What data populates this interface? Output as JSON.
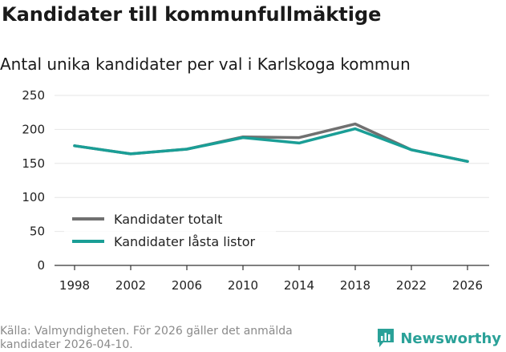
{
  "header": {
    "title": "Kandidater till kommunfullmäktige",
    "subtitle": "Antal unika kandidater per val i Karlskoga kommun"
  },
  "chart_data": {
    "type": "line",
    "title": "Kandidater till kommunfullmäktige",
    "subtitle": "Antal unika kandidater per val i Karlskoga kommun",
    "categories": [
      "1998",
      "2002",
      "2006",
      "2010",
      "2014",
      "2018",
      "2022",
      "2026"
    ],
    "series": [
      {
        "name": "Kandidater totalt",
        "color": "#707070",
        "values": [
          176,
          164,
          171,
          189,
          188,
          208,
          170,
          153
        ]
      },
      {
        "name": "Kandidater låsta listor",
        "color": "#1a9e96",
        "values": [
          176,
          164,
          171,
          188,
          180,
          201,
          170,
          153
        ]
      }
    ],
    "ylim": [
      0,
      250
    ],
    "yticks": [
      0,
      50,
      100,
      150,
      200,
      250
    ],
    "xlabel": "",
    "ylabel": "",
    "grid": true,
    "legend": "bottom-left"
  },
  "footer": {
    "source": "Källa: Valmyndigheten. För 2026 gäller det anmälda kandidater 2026-04-10.",
    "brand": "Newsworthy",
    "brand_color": "#2aa198"
  }
}
